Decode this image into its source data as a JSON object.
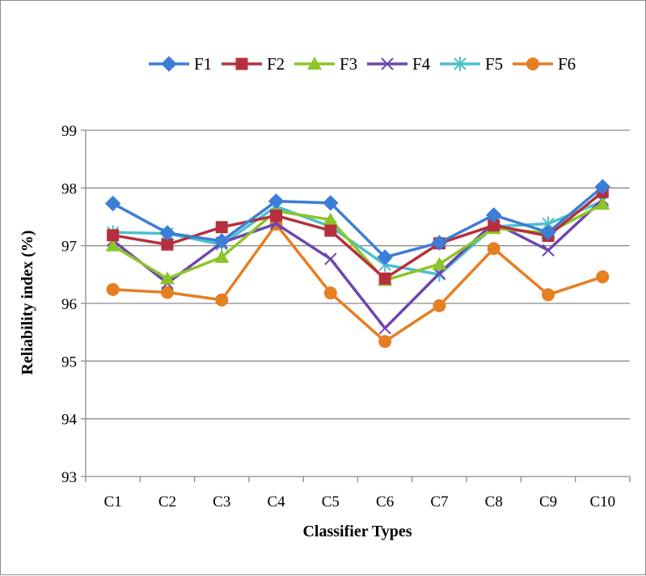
{
  "chart_data": {
    "type": "line",
    "xlabel": "Classifier Types",
    "ylabel": "Reliability index (%)",
    "categories": [
      "C1",
      "C2",
      "C3",
      "C4",
      "C5",
      "C6",
      "C7",
      "C8",
      "C9",
      "C10"
    ],
    "ylim": [
      93,
      99
    ],
    "yticks": [
      93,
      94,
      95,
      96,
      97,
      98,
      99
    ],
    "grid": true,
    "legend_position": "top",
    "series": [
      {
        "name": "F1",
        "color": "#3c7dd6",
        "marker": "diamond",
        "values": [
          97.73,
          97.22,
          97.08,
          97.77,
          97.74,
          96.8,
          97.05,
          97.53,
          97.23,
          98.02
        ]
      },
      {
        "name": "F2",
        "color": "#b5303c",
        "marker": "square",
        "values": [
          97.18,
          97.02,
          97.32,
          97.52,
          97.26,
          96.43,
          97.04,
          97.35,
          97.17,
          97.93
        ]
      },
      {
        "name": "F3",
        "color": "#8cc528",
        "marker": "triangle",
        "values": [
          97.0,
          96.43,
          96.8,
          97.6,
          97.45,
          96.4,
          96.68,
          97.3,
          97.22,
          97.72
        ]
      },
      {
        "name": "F4",
        "color": "#6d45b0",
        "marker": "x",
        "values": [
          97.09,
          96.35,
          97.05,
          97.38,
          96.77,
          95.57,
          96.52,
          97.4,
          96.92,
          97.8
        ]
      },
      {
        "name": "F5",
        "color": "#4bc0cc",
        "marker": "asterisk",
        "values": [
          97.23,
          97.21,
          97.02,
          97.68,
          97.33,
          96.67,
          96.5,
          97.33,
          97.38,
          97.77
        ]
      },
      {
        "name": "F6",
        "color": "#e67e22",
        "marker": "circle",
        "values": [
          96.24,
          96.19,
          96.06,
          97.37,
          96.18,
          95.34,
          95.96,
          96.95,
          96.15,
          96.46
        ]
      }
    ]
  }
}
